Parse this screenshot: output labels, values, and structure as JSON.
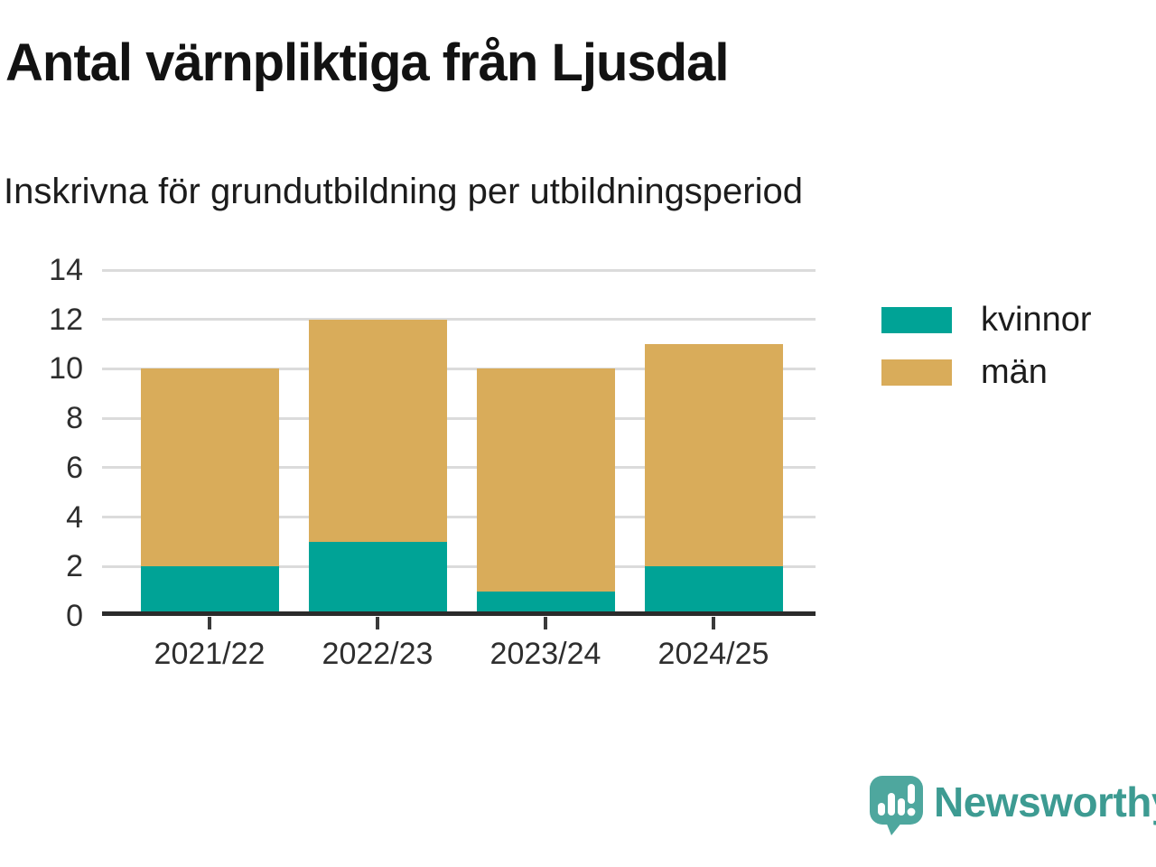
{
  "chart_data": {
    "type": "bar",
    "stacked": true,
    "title": "Antal värnpliktiga från Ljusdal",
    "subtitle": "Inskrivna för grundutbildning per utbildningsperiod",
    "categories": [
      "2021/22",
      "2022/23",
      "2023/24",
      "2024/25"
    ],
    "series": [
      {
        "name": "kvinnor",
        "color": "#00a396",
        "values": [
          2,
          3,
          1,
          2
        ]
      },
      {
        "name": "män",
        "color": "#d9ac5a",
        "values": [
          8,
          9,
          9,
          9
        ]
      }
    ],
    "totals": [
      10,
      12,
      10,
      11
    ],
    "ylim": [
      0,
      14
    ],
    "yticks": [
      0,
      2,
      4,
      6,
      8,
      10,
      12,
      14
    ],
    "grid": true,
    "legend_position": "right",
    "xlabel": "",
    "ylabel": ""
  },
  "colors": {
    "axis": "#2b2b2b",
    "gridline": "#dbdbdb",
    "tick": "#3a3a3a",
    "text": "#1c1c1c"
  },
  "branding": {
    "name": "Newsworthy",
    "logo_color": "#4ea79e",
    "text_color": "#3d9b92"
  }
}
